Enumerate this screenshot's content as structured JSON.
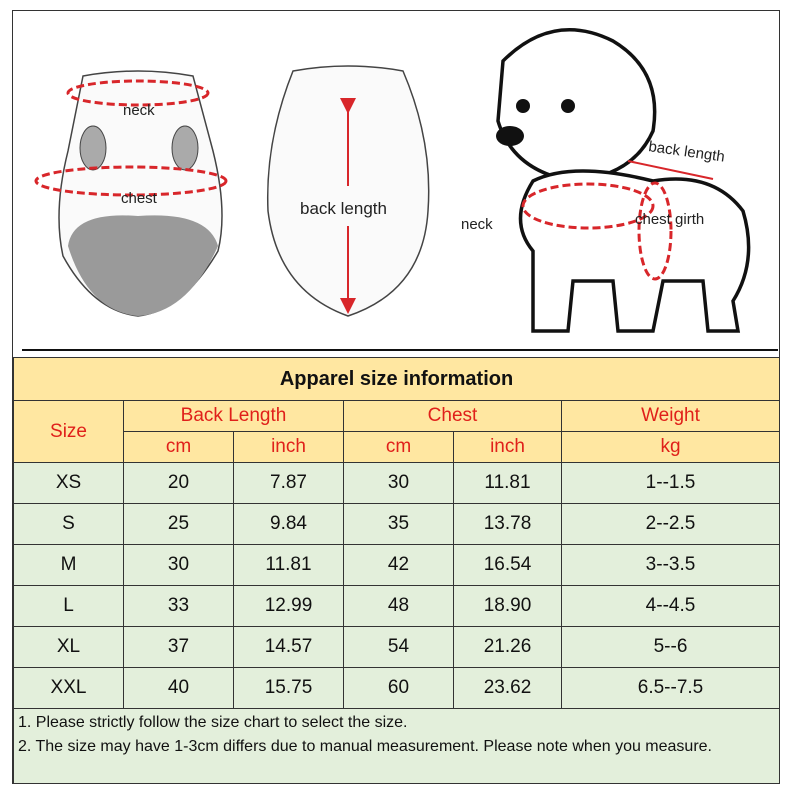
{
  "illustrations": {
    "vest_front": {
      "neck_label": "neck",
      "chest_label": "chest"
    },
    "vest_back": {
      "back_length_label": "back length"
    },
    "dog": {
      "back_length_label": "back length",
      "neck_label": "neck",
      "chest_girth_label": "chest girth"
    }
  },
  "table": {
    "title": "Apparel  size  information",
    "headers": {
      "size": "Size",
      "back_length": "Back Length",
      "chest": "Chest",
      "weight": "Weight"
    },
    "units": [
      "cm",
      "inch",
      "cm",
      "inch",
      "kg"
    ],
    "rows": [
      [
        "XS",
        "20",
        "7.87",
        "30",
        "11.81",
        "1--1.5"
      ],
      [
        "S",
        "25",
        "9.84",
        "35",
        "13.78",
        "2--2.5"
      ],
      [
        "M",
        "30",
        "11.81",
        "42",
        "16.54",
        "3--3.5"
      ],
      [
        "L",
        "33",
        "12.99",
        "48",
        "18.90",
        "4--4.5"
      ],
      [
        "XL",
        "37",
        "14.57",
        "54",
        "21.26",
        "5--6"
      ],
      [
        "XXL",
        "40",
        "15.75",
        "60",
        "23.62",
        "6.5--7.5"
      ]
    ],
    "notes": [
      "1. Please strictly follow the size chart  to select the size.",
      "2. The size may have 1-3cm differs due to manual measurement. Please note when you measure."
    ]
  },
  "colors": {
    "header_bg": "#ffe7a1",
    "row_bg": "#e3efdb",
    "accent_red": "#e0201a"
  }
}
